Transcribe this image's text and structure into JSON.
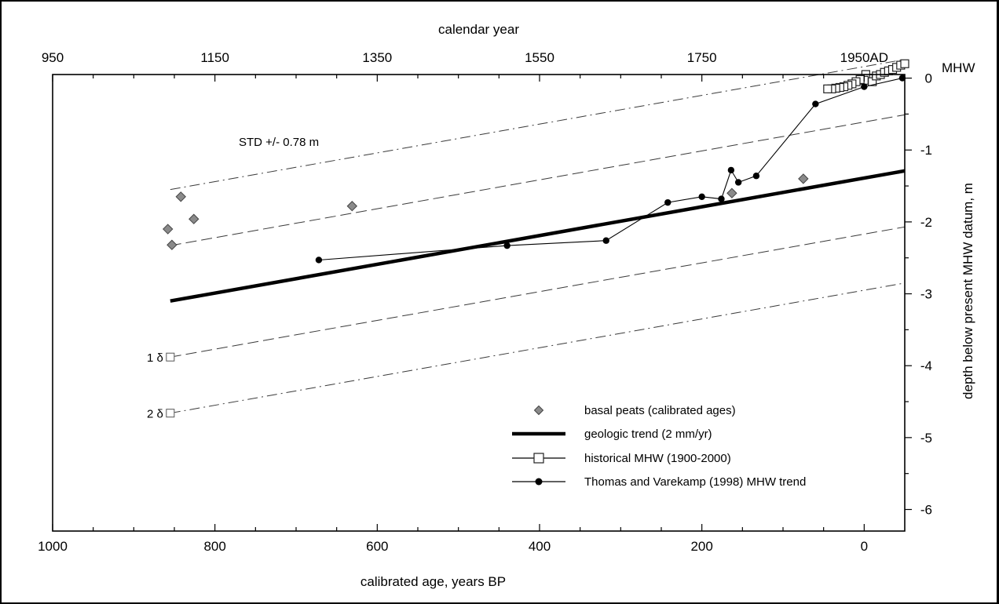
{
  "chart_data": {
    "type": "scatter",
    "title": "",
    "xlabel": "calibrated age, years BP",
    "x2label": "calendar year",
    "ylabel": "depth below present MHW datum, m",
    "xlim": [
      1000,
      -50
    ],
    "ylim": [
      -6.3,
      0.05
    ],
    "x_ticks": [
      1000,
      800,
      600,
      400,
      200,
      0
    ],
    "x2_ticks": [
      {
        "label": "950",
        "bp": 1000
      },
      {
        "label": "1150",
        "bp": 800
      },
      {
        "label": "1350",
        "bp": 600
      },
      {
        "label": "1550",
        "bp": 400
      },
      {
        "label": "1750",
        "bp": 200
      },
      {
        "label": "1950AD",
        "bp": 0
      }
    ],
    "y_ticks": [
      0,
      -1,
      -2,
      -3,
      -4,
      -5,
      -6
    ],
    "y_tick_labels": [
      "0",
      "-1",
      "-2",
      "-3",
      "-4",
      "-5",
      "-6"
    ],
    "right_top_label": "MHW",
    "grid": false,
    "legend_position": "bottom-right",
    "series": [
      {
        "name": "basal peats (calibrated ages)",
        "style": "diamond",
        "color": "#8a8a8a",
        "points": [
          [
            858,
            -2.1
          ],
          [
            853,
            -2.32
          ],
          [
            842,
            -1.65
          ],
          [
            826,
            -1.96
          ],
          [
            631,
            -1.78
          ],
          [
            163,
            -1.6
          ],
          [
            75,
            -1.4
          ]
        ]
      },
      {
        "name": "geologic trend (2 mm/yr)",
        "style": "thick-line",
        "color": "#000000",
        "points": [
          [
            855,
            -3.1
          ],
          [
            -50,
            -1.29
          ]
        ]
      },
      {
        "name": "historical MHW (1900-2000)",
        "style": "line-square",
        "color": "#000000",
        "points": [
          [
            -5,
            0.0
          ],
          [
            -2,
            0.05
          ],
          [
            -10,
            -0.05
          ],
          [
            0,
            -0.03
          ],
          [
            5,
            -0.02
          ],
          [
            10,
            -0.05
          ],
          [
            15,
            -0.08
          ],
          [
            20,
            -0.1
          ],
          [
            25,
            -0.12
          ],
          [
            30,
            -0.13
          ],
          [
            35,
            -0.14
          ],
          [
            40,
            -0.15
          ],
          [
            45,
            -0.15
          ],
          [
            -15,
            0.03
          ],
          [
            -20,
            0.05
          ],
          [
            -25,
            0.08
          ],
          [
            -30,
            0.1
          ],
          [
            -35,
            0.12
          ],
          [
            -40,
            0.15
          ],
          [
            -45,
            0.18
          ],
          [
            -50,
            0.2
          ]
        ]
      },
      {
        "name": "Thomas and Varekamp (1998) MHW trend",
        "style": "line-circle",
        "color": "#000000",
        "points": [
          [
            672,
            -2.53
          ],
          [
            440,
            -2.33
          ],
          [
            318,
            -2.26
          ],
          [
            242,
            -1.73
          ],
          [
            200,
            -1.65
          ],
          [
            176,
            -1.68
          ],
          [
            164,
            -1.28
          ],
          [
            155,
            -1.45
          ],
          [
            133,
            -1.36
          ],
          [
            60,
            -0.36
          ],
          [
            0,
            -0.12
          ],
          [
            -47,
            0.0
          ]
        ]
      }
    ],
    "reference_lines": [
      {
        "label": "",
        "style": "dash-dot",
        "points": [
          [
            855,
            -1.55
          ],
          [
            -50,
            0.26
          ]
        ]
      },
      {
        "label": "",
        "style": "dashed",
        "points": [
          [
            855,
            -2.33
          ],
          [
            -50,
            -0.51
          ]
        ]
      },
      {
        "label": "1 δ",
        "style": "dashed",
        "points": [
          [
            855,
            -3.88
          ],
          [
            -50,
            -2.07
          ]
        ]
      },
      {
        "label": "2 δ",
        "style": "dash-dot",
        "points": [
          [
            855,
            -4.66
          ],
          [
            -50,
            -2.85
          ]
        ]
      }
    ],
    "annotation": "STD +/- 0.78 m"
  }
}
